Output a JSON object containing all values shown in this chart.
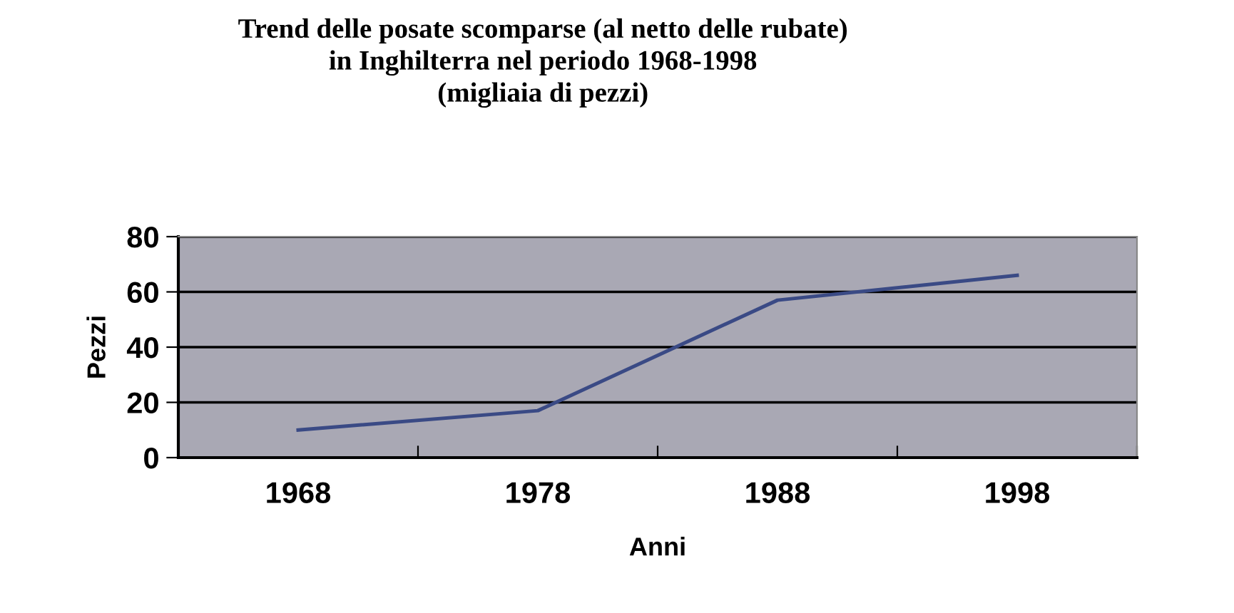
{
  "chart_data": {
    "type": "line",
    "title": "Trend delle posate scomparse (al netto delle rubate)\nin Inghilterra nel periodo 1968-1998\n(migliaia di pezzi)",
    "xlabel": "Anni",
    "ylabel": "Pezzi",
    "categories": [
      "1968",
      "1978",
      "1988",
      "1998"
    ],
    "series": [
      {
        "color": "#3a4a85",
        "values": [
          10,
          17,
          57,
          66
        ]
      }
    ],
    "ylim": [
      0,
      80
    ],
    "yticks": [
      0,
      20,
      40,
      60,
      80
    ],
    "grid": "y",
    "marker": "none",
    "line_style": "solid"
  }
}
